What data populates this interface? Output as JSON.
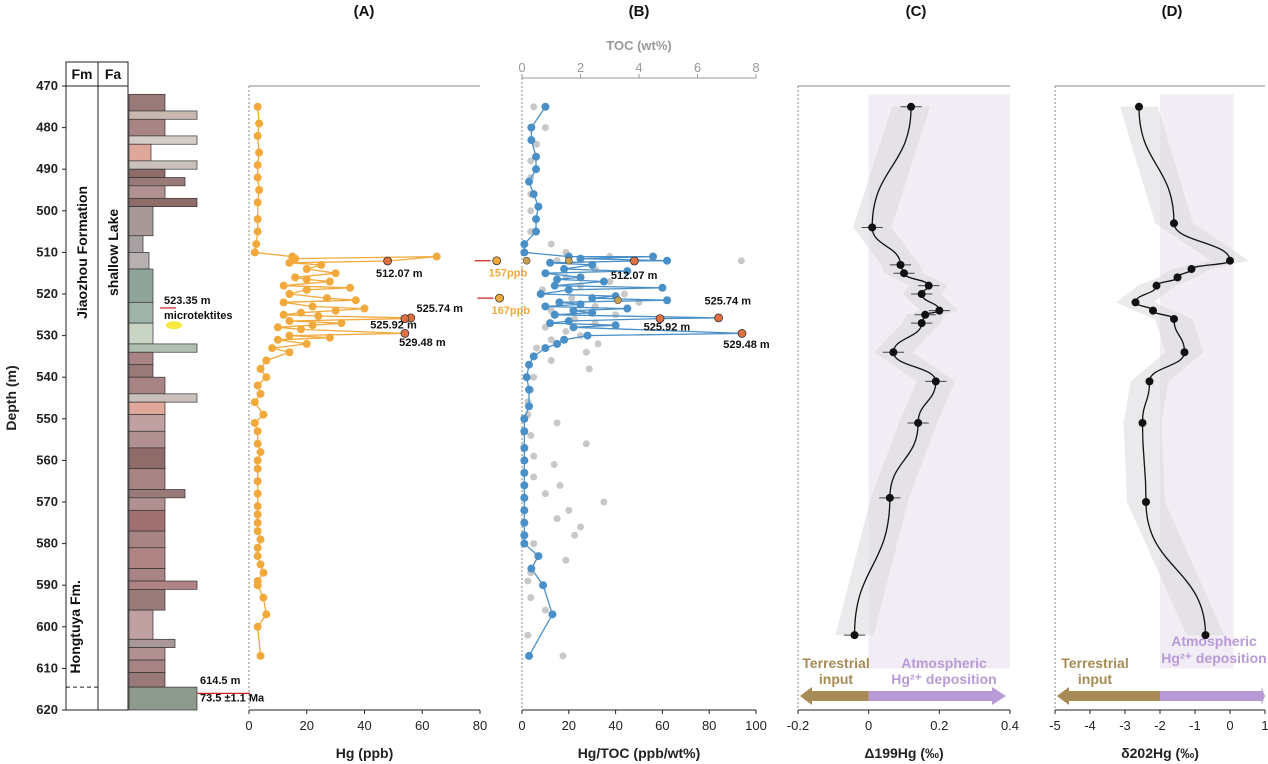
{
  "depth_axis": {
    "label": "Depth (m)",
    "ticks": [
      470,
      480,
      490,
      500,
      510,
      520,
      530,
      540,
      550,
      560,
      570,
      580,
      590,
      600,
      610,
      620
    ],
    "range": [
      470,
      620
    ]
  },
  "strat_column": {
    "headers": {
      "fm": "Fm",
      "fa": "Fa"
    },
    "formation_upper": "Jiaozhou Formation",
    "formation_lower": "Hongtuya Fm.",
    "facies": "shallow Lake",
    "annotations": {
      "microtektites_depth": "523.35 m",
      "microtektites_label": "microtektites",
      "boundary_depth": "614.5 m",
      "boundary_age": "73.5 ±1.1 Ma"
    }
  },
  "chart_data": [
    {
      "panel": "(A)",
      "type": "line",
      "xlabel": "Hg (ppb)",
      "xlim": [
        0,
        80
      ],
      "xticks": [
        0,
        20,
        40,
        60,
        80
      ],
      "ylim": [
        470,
        620
      ],
      "color": "#F2A93B",
      "points": [
        [
          3,
          475
        ],
        [
          3.5,
          479
        ],
        [
          3,
          482
        ],
        [
          3.5,
          486
        ],
        [
          3,
          489
        ],
        [
          3,
          492
        ],
        [
          3.5,
          495
        ],
        [
          3,
          498
        ],
        [
          3,
          502
        ],
        [
          3,
          505
        ],
        [
          2.5,
          508
        ],
        [
          2,
          510
        ],
        [
          15,
          511
        ],
        [
          16,
          511.5
        ],
        [
          65,
          511
        ],
        [
          48,
          512.07
        ],
        [
          14,
          512.5
        ],
        [
          25,
          513
        ],
        [
          20,
          514
        ],
        [
          30,
          515
        ],
        [
          16,
          516
        ],
        [
          20,
          516.5
        ],
        [
          28,
          517
        ],
        [
          12,
          518
        ],
        [
          35,
          518.5
        ],
        [
          20,
          519
        ],
        [
          14,
          520
        ],
        [
          27,
          521
        ],
        [
          37,
          521.5
        ],
        [
          12,
          522
        ],
        [
          22,
          523
        ],
        [
          40,
          523.5
        ],
        [
          30,
          524
        ],
        [
          18,
          524.5
        ],
        [
          12,
          525
        ],
        [
          24,
          525.3
        ],
        [
          56,
          525.74
        ],
        [
          54,
          525.92
        ],
        [
          14,
          526.5
        ],
        [
          32,
          527
        ],
        [
          22,
          527.5
        ],
        [
          10,
          528
        ],
        [
          18,
          528.5
        ],
        [
          54,
          529.48
        ],
        [
          14,
          530
        ],
        [
          28,
          530.5
        ],
        [
          10,
          531
        ],
        [
          20,
          532
        ],
        [
          8,
          533
        ],
        [
          14,
          534
        ],
        [
          6,
          536
        ],
        [
          4,
          538
        ],
        [
          6,
          540
        ],
        [
          3,
          542
        ],
        [
          4,
          544
        ],
        [
          2,
          546
        ],
        [
          5,
          549
        ],
        [
          2,
          551
        ],
        [
          3,
          553
        ],
        [
          3,
          556
        ],
        [
          4,
          558
        ],
        [
          3,
          560
        ],
        [
          3,
          562
        ],
        [
          3,
          565
        ],
        [
          3,
          568
        ],
        [
          3,
          571
        ],
        [
          3,
          573
        ],
        [
          3,
          575
        ],
        [
          3,
          577
        ],
        [
          4,
          579
        ],
        [
          3,
          581
        ],
        [
          3,
          583
        ],
        [
          4,
          585
        ],
        [
          5,
          587
        ],
        [
          3,
          589
        ],
        [
          3,
          590
        ],
        [
          5,
          593
        ],
        [
          6,
          597
        ],
        [
          3,
          600
        ],
        [
          4,
          607
        ]
      ],
      "labels": [
        "512.07 m",
        "525.74 m",
        "525.92 m",
        "529.48 m"
      ],
      "inset_points": [
        {
          "x": 83,
          "y": 512,
          "label": "157ppb"
        },
        {
          "x": 84,
          "y": 521,
          "label": "167ppb"
        }
      ]
    },
    {
      "panel": "(B)",
      "type": "line",
      "xlabel": "Hg/TOC (ppb/wt%)",
      "xlim": [
        0,
        100
      ],
      "xticks": [
        0,
        20,
        40,
        60,
        80,
        100
      ],
      "secondary_axis": {
        "label": "TOC (wt%)",
        "xlim": [
          0,
          8
        ],
        "xticks": [
          0,
          2,
          4,
          6,
          8
        ]
      },
      "ylim": [
        470,
        620
      ],
      "series": [
        {
          "name": "Hg/TOC",
          "color": "#4A90C8",
          "points": [
            [
              10,
              475
            ],
            [
              4,
              480
            ],
            [
              4,
              483
            ],
            [
              6,
              487
            ],
            [
              6,
              490
            ],
            [
              3,
              493
            ],
            [
              5,
              496
            ],
            [
              7,
              499
            ],
            [
              6,
              502
            ],
            [
              6,
              505
            ],
            [
              1,
              508
            ],
            [
              1,
              510
            ],
            [
              20,
              511
            ],
            [
              56,
              511
            ],
            [
              25,
              511.5
            ],
            [
              62,
              512
            ],
            [
              48,
              512.07
            ],
            [
              12,
              512.5
            ],
            [
              30,
              513
            ],
            [
              18,
              514
            ],
            [
              45,
              514.5
            ],
            [
              10,
              515
            ],
            [
              25,
              516
            ],
            [
              15,
              516.5
            ],
            [
              35,
              517
            ],
            [
              14,
              518
            ],
            [
              60,
              518.5
            ],
            [
              20,
              519
            ],
            [
              8,
              520
            ],
            [
              40,
              520.5
            ],
            [
              30,
              521
            ],
            [
              62,
              521.5
            ],
            [
              16,
              522
            ],
            [
              25,
              522.5
            ],
            [
              10,
              523
            ],
            [
              45,
              523.5
            ],
            [
              22,
              524
            ],
            [
              30,
              524.5
            ],
            [
              14,
              525
            ],
            [
              84,
              525.74
            ],
            [
              59,
              525.92
            ],
            [
              20,
              526.5
            ],
            [
              12,
              527
            ],
            [
              40,
              527.5
            ],
            [
              22,
              528
            ],
            [
              94,
              529.48
            ],
            [
              28,
              530
            ],
            [
              18,
              531
            ],
            [
              15,
              532
            ],
            [
              10,
              533
            ],
            [
              5,
              535
            ],
            [
              3,
              537
            ],
            [
              2,
              540
            ],
            [
              3,
              543
            ],
            [
              3,
              547
            ],
            [
              1,
              550
            ],
            [
              1,
              553
            ],
            [
              1,
              557
            ],
            [
              1,
              560
            ],
            [
              1,
              563
            ],
            [
              1,
              566
            ],
            [
              1,
              569
            ],
            [
              1,
              572
            ],
            [
              1,
              575
            ],
            [
              1,
              578
            ],
            [
              1,
              580
            ],
            [
              7,
              583
            ],
            [
              4,
              586
            ],
            [
              9,
              590
            ],
            [
              13,
              597
            ],
            [
              3,
              607
            ]
          ]
        },
        {
          "name": "TOC",
          "color": "#C8C8C8",
          "points": [
            [
              0.4,
              475
            ],
            [
              0.8,
              480
            ],
            [
              0.5,
              484
            ],
            [
              0.3,
              488
            ],
            [
              0.3,
              492
            ],
            [
              0.3,
              496
            ],
            [
              0.3,
              500
            ],
            [
              0.3,
              505
            ],
            [
              1,
              508
            ],
            [
              1.5,
              510
            ],
            [
              3,
              511
            ],
            [
              1.2,
              512
            ],
            [
              2.5,
              514
            ],
            [
              0.8,
              515
            ],
            [
              1.5,
              516
            ],
            [
              3,
              517
            ],
            [
              2,
              518
            ],
            [
              0.7,
              519
            ],
            [
              3.5,
              520
            ],
            [
              1.7,
              521
            ],
            [
              4,
              522
            ],
            [
              2.5,
              523
            ],
            [
              1,
              524
            ],
            [
              3.2,
              525
            ],
            [
              1.8,
              526
            ],
            [
              2.5,
              527
            ],
            [
              0.8,
              528
            ],
            [
              1.5,
              529
            ],
            [
              2,
              530
            ],
            [
              1,
              531
            ],
            [
              2.6,
              532
            ],
            [
              0.5,
              533
            ],
            [
              2.2,
              534
            ],
            [
              1,
              536
            ],
            [
              2.3,
              538
            ],
            [
              0.4,
              540
            ],
            [
              0.3,
              543
            ],
            [
              0.2,
              546
            ],
            [
              0.2,
              549
            ],
            [
              1.2,
              551
            ],
            [
              0.3,
              554
            ],
            [
              2.2,
              556
            ],
            [
              0.4,
              559
            ],
            [
              1.1,
              561
            ],
            [
              0.4,
              564
            ],
            [
              1.3,
              566
            ],
            [
              0.8,
              568
            ],
            [
              2.8,
              570
            ],
            [
              1.6,
              572
            ],
            [
              1.2,
              574
            ],
            [
              2,
              576
            ],
            [
              1.8,
              578
            ],
            [
              0.4,
              580
            ],
            [
              1.5,
              584
            ],
            [
              0.3,
              587
            ],
            [
              0.2,
              589
            ],
            [
              0.3,
              593
            ],
            [
              0.8,
              596
            ],
            [
              0.2,
              602
            ],
            [
              1.4,
              607
            ],
            [
              7.5,
              512
            ]
          ]
        }
      ],
      "labels": [
        "512.07 m",
        "525.74 m",
        "525.92 m",
        "529.48 m"
      ]
    },
    {
      "panel": "(C)",
      "type": "line",
      "xlabel": "Δ199Hg (‰)",
      "xlim": [
        -0.2,
        0.4
      ],
      "xticks": [
        "-0.2",
        "0",
        "0.2",
        "0.4"
      ],
      "ylim": [
        470,
        620
      ],
      "color": "#111111",
      "points": [
        [
          0.12,
          475
        ],
        [
          0.01,
          504
        ],
        [
          0.09,
          513
        ],
        [
          0.1,
          515
        ],
        [
          0.17,
          518
        ],
        [
          0.15,
          520
        ],
        [
          0.2,
          524
        ],
        [
          0.16,
          525
        ],
        [
          0.15,
          527
        ],
        [
          0.07,
          534
        ],
        [
          0.19,
          541
        ],
        [
          0.14,
          551
        ],
        [
          0.06,
          569
        ],
        [
          -0.04,
          602
        ]
      ],
      "annotations": {
        "left_arrow": "Terrestrial input",
        "right_arrow": "Atmospheric Hg2+ deposition"
      }
    },
    {
      "panel": "(D)",
      "type": "line",
      "xlabel": "δ202Hg (‰)",
      "xlim": [
        -5,
        1
      ],
      "xticks": [
        "-5",
        "-4",
        "-3",
        "-2",
        "-1",
        "0",
        "1"
      ],
      "ylim": [
        470,
        620
      ],
      "color": "#111111",
      "points": [
        [
          -2.6,
          475
        ],
        [
          -1.6,
          503
        ],
        [
          0,
          512
        ],
        [
          -1.1,
          514
        ],
        [
          -1.5,
          516
        ],
        [
          -2.1,
          518
        ],
        [
          -2.7,
          522
        ],
        [
          -2.2,
          524
        ],
        [
          -1.6,
          526
        ],
        [
          -1.3,
          534
        ],
        [
          -2.3,
          541
        ],
        [
          -2.5,
          551
        ],
        [
          -2.4,
          570
        ],
        [
          -0.7,
          602
        ]
      ],
      "annotations": {
        "left_arrow": "Terrestrial input",
        "right_arrow": "Atmospheric Hg2+ deposition"
      }
    }
  ],
  "colors": {
    "orange": "#F2A93B",
    "blue": "#4A90C8",
    "gray": "#C8C8C8",
    "band": "#EDE6F0",
    "brown": "#A88A55",
    "purple": "#B89BD6"
  }
}
